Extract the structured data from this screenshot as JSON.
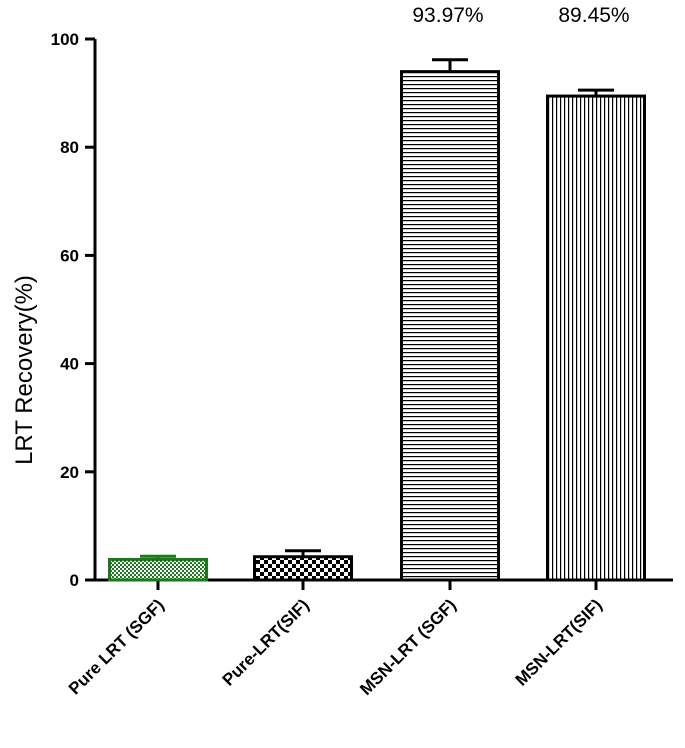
{
  "chart_data": {
    "type": "bar",
    "title": "",
    "xlabel": "",
    "ylabel": "LRT Recovery(%)",
    "ylim": [
      0,
      100
    ],
    "yticks": [
      0,
      20,
      40,
      60,
      80,
      100
    ],
    "categories": [
      "Pure LRT (SGF)",
      "Pure-LRT(SIF)",
      "MSN-LRT (SGF)",
      "MSN-LRT(SIF)"
    ],
    "values": [
      3.8,
      4.3,
      93.97,
      89.45
    ],
    "errors": [
      0.6,
      1.1,
      2.2,
      1.1
    ],
    "data_labels": [
      "",
      "",
      "93.97%",
      "89.45%"
    ],
    "bar_patterns": [
      "green-checker",
      "black-checker",
      "horizontal-lines",
      "vertical-lines"
    ],
    "bar_colors": [
      "#1a7a1a",
      "#000000",
      "#000000",
      "#000000"
    ],
    "grid": false
  }
}
